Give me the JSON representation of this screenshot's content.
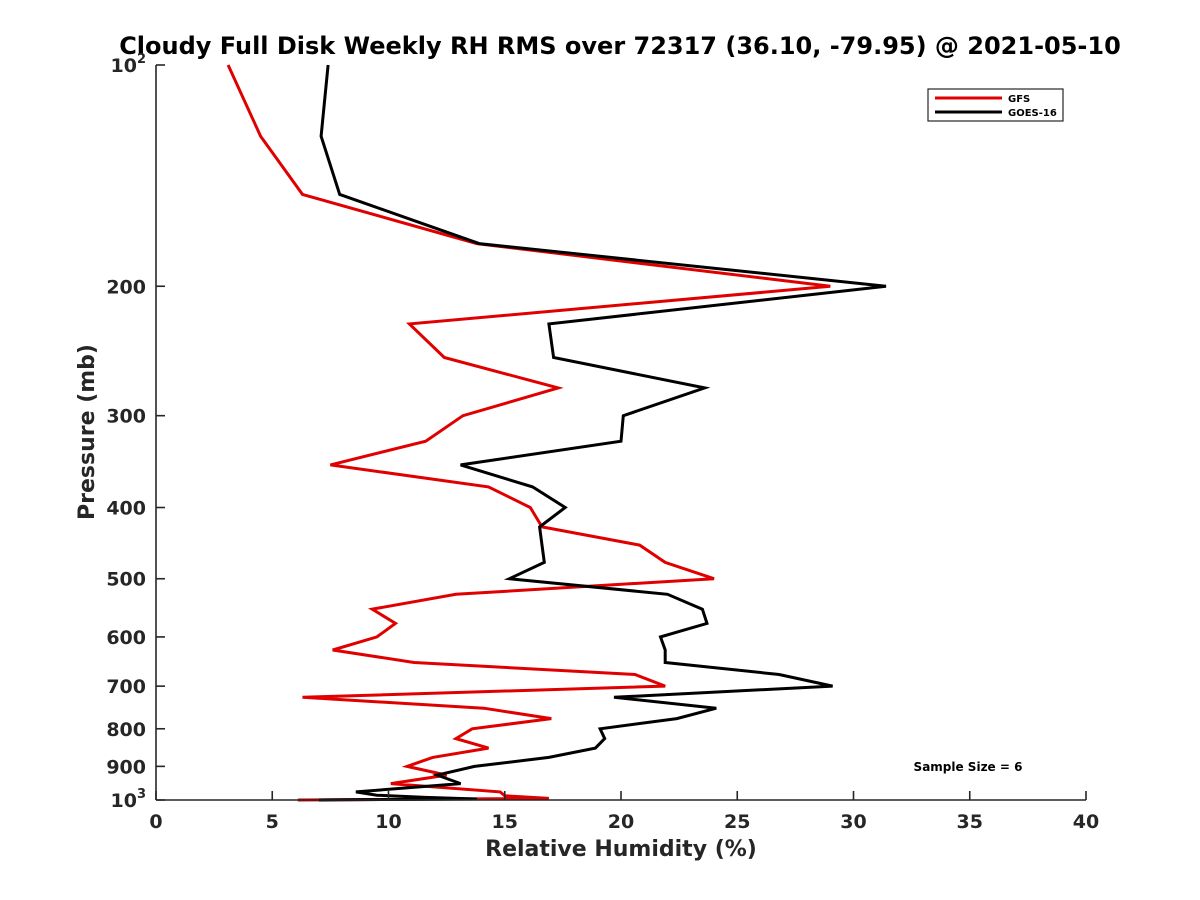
{
  "chart_data": {
    "type": "line",
    "title": "Cloudy Full Disk Weekly RH RMS over 72317 (36.10, -79.95) @ 2021-05-10",
    "xlabel": "Relative Humidity (%)",
    "ylabel": "Pressure (mb)",
    "xlim": [
      0,
      40
    ],
    "ylim": [
      100,
      1000
    ],
    "yscale": "log",
    "y_reversed": true,
    "grid": false,
    "legend_position": "top-right",
    "x_ticks": [
      "0",
      "5",
      "10",
      "15",
      "20",
      "25",
      "30",
      "35",
      "40"
    ],
    "y_ticks": [
      {
        "value": 100,
        "label": "10",
        "exponent": "2"
      },
      {
        "value": 200,
        "label": "200"
      },
      {
        "value": 300,
        "label": "300"
      },
      {
        "value": 400,
        "label": "400"
      },
      {
        "value": 500,
        "label": "500"
      },
      {
        "value": 600,
        "label": "600"
      },
      {
        "value": 700,
        "label": "700"
      },
      {
        "value": 800,
        "label": "800"
      },
      {
        "value": 900,
        "label": "900"
      },
      {
        "value": 1000,
        "label": "10",
        "exponent": "3"
      }
    ],
    "annotation": "Sample Size = 6",
    "series": [
      {
        "name": "GFS",
        "color": "#e00000",
        "points": [
          [
            3.1,
            100
          ],
          [
            4.5,
            125
          ],
          [
            6.3,
            150
          ],
          [
            13.8,
            175
          ],
          [
            29.0,
            200
          ],
          [
            10.9,
            225
          ],
          [
            12.4,
            250
          ],
          [
            17.3,
            275
          ],
          [
            13.2,
            300
          ],
          [
            11.6,
            325
          ],
          [
            7.5,
            350
          ],
          [
            14.3,
            375
          ],
          [
            16.1,
            400
          ],
          [
            16.6,
            425
          ],
          [
            20.8,
            450
          ],
          [
            21.9,
            475
          ],
          [
            24.0,
            500
          ],
          [
            12.9,
            525
          ],
          [
            9.3,
            550
          ],
          [
            10.3,
            575
          ],
          [
            9.5,
            600
          ],
          [
            7.6,
            625
          ],
          [
            11.1,
            650
          ],
          [
            20.6,
            675
          ],
          [
            21.9,
            700
          ],
          [
            6.3,
            725
          ],
          [
            14.1,
            750
          ],
          [
            17.0,
            775
          ],
          [
            13.6,
            800
          ],
          [
            12.9,
            825
          ],
          [
            14.3,
            850
          ],
          [
            11.9,
            875
          ],
          [
            10.8,
            900
          ],
          [
            12.5,
            925
          ],
          [
            10.1,
            950
          ],
          [
            14.8,
            975
          ],
          [
            15.0,
            987
          ],
          [
            16.9,
            995
          ],
          [
            6.1,
            1000
          ]
        ]
      },
      {
        "name": "GOES-16",
        "color": "#000000",
        "points": [
          [
            7.4,
            100
          ],
          [
            7.1,
            125
          ],
          [
            7.9,
            150
          ],
          [
            13.9,
            175
          ],
          [
            31.4,
            200
          ],
          [
            16.9,
            225
          ],
          [
            17.1,
            250
          ],
          [
            23.6,
            275
          ],
          [
            20.1,
            300
          ],
          [
            20.0,
            325
          ],
          [
            13.1,
            350
          ],
          [
            16.2,
            375
          ],
          [
            17.6,
            400
          ],
          [
            16.5,
            425
          ],
          [
            16.6,
            450
          ],
          [
            16.7,
            475
          ],
          [
            15.2,
            500
          ],
          [
            22.0,
            525
          ],
          [
            23.5,
            550
          ],
          [
            23.7,
            575
          ],
          [
            21.7,
            600
          ],
          [
            21.9,
            625
          ],
          [
            21.9,
            650
          ],
          [
            26.8,
            675
          ],
          [
            29.1,
            700
          ],
          [
            19.7,
            725
          ],
          [
            24.1,
            750
          ],
          [
            22.4,
            775
          ],
          [
            19.1,
            800
          ],
          [
            19.3,
            825
          ],
          [
            18.9,
            850
          ],
          [
            16.9,
            875
          ],
          [
            13.7,
            900
          ],
          [
            12.1,
            925
          ],
          [
            13.1,
            950
          ],
          [
            8.6,
            975
          ],
          [
            9.5,
            985
          ],
          [
            11.6,
            992
          ],
          [
            13.8,
            997
          ],
          [
            8.1,
            999
          ],
          [
            7.0,
            1000
          ]
        ]
      }
    ]
  }
}
